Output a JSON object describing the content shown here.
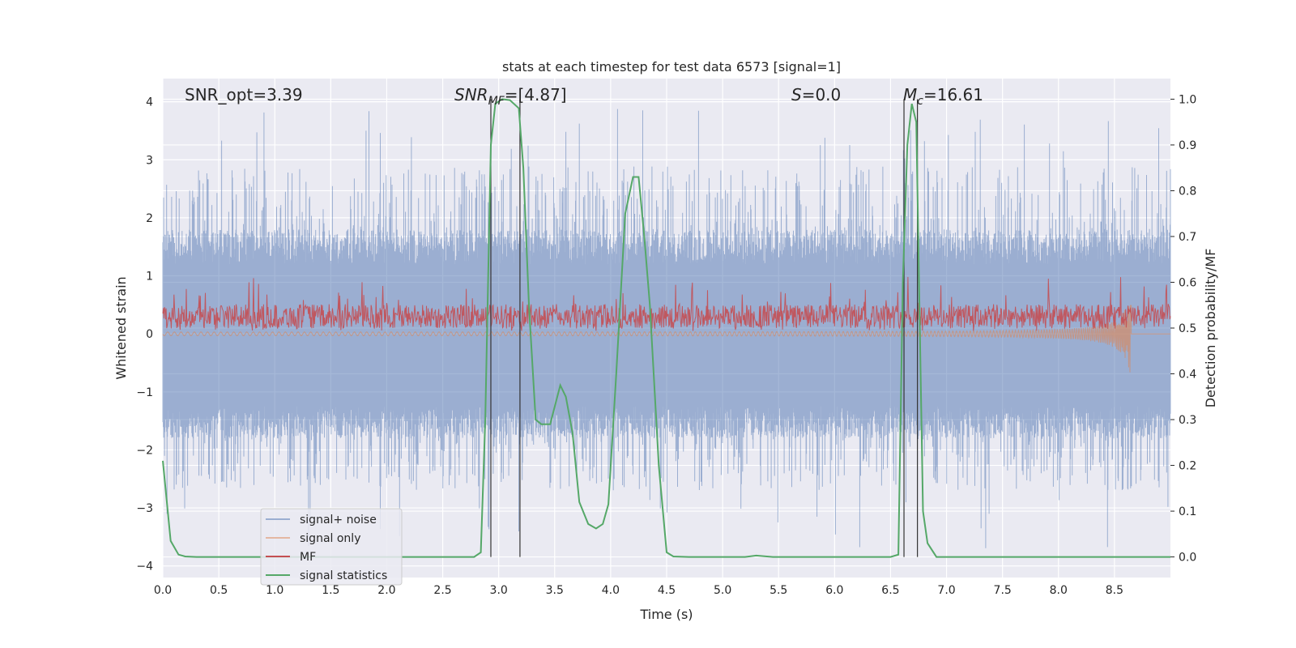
{
  "chart_data": {
    "type": "line",
    "title": "stats at each timestep for test data 6573 [signal=1]",
    "xlabel": "Time (s)",
    "ylabel": "Whitened strain",
    "ylabel_right": "Detection probability/MF",
    "xlim": [
      0.0,
      9.0
    ],
    "ylim": [
      -4.2,
      4.4
    ],
    "ylim_right": [
      -0.045,
      1.045
    ],
    "x_ticks": [
      "0.0",
      "0.5",
      "1.0",
      "1.5",
      "2.0",
      "2.5",
      "3.0",
      "3.5",
      "4.0",
      "4.5",
      "5.0",
      "5.5",
      "6.0",
      "6.5",
      "7.0",
      "7.5",
      "8.0",
      "8.5"
    ],
    "y_ticks": [
      "4",
      "3",
      "2",
      "1",
      "0",
      "−1",
      "−2",
      "−3",
      "−4"
    ],
    "y_ticks_right": [
      "1.0",
      "0.9",
      "0.8",
      "0.7",
      "0.6",
      "0.5",
      "0.4",
      "0.3",
      "0.2",
      "0.1",
      "0.0"
    ],
    "grid": true,
    "legend_position": "lower-left",
    "annotations": {
      "snr_opt": "SNR_opt=3.39",
      "snr_mf_main": "SNR",
      "snr_mf_sub": "MF",
      "snr_mf_rest": "=[4.87]",
      "s_main": "S",
      "s_rest": "=0.0",
      "mc_main": "M",
      "mc_sub": "c",
      "mc_rest": "=16.61"
    },
    "series": [
      {
        "name": "signal+ noise",
        "color": "#4c72b0",
        "axis": "left",
        "note": "noise amplitude ~ ±1.5 with spikes to ±3"
      },
      {
        "name": "signal only",
        "color": "#dd8452",
        "axis": "left"
      },
      {
        "name": "MF",
        "color": "#c44e52",
        "axis": "left"
      },
      {
        "name": "signal statistics",
        "color": "#55a868",
        "axis": "right",
        "x": [
          0.0,
          0.07,
          0.14,
          0.2,
          0.3,
          0.5,
          1.0,
          1.5,
          2.0,
          2.5,
          2.78,
          2.84,
          2.88,
          2.93,
          2.97,
          3.03,
          3.1,
          3.18,
          3.22,
          3.27,
          3.33,
          3.38,
          3.46,
          3.55,
          3.6,
          3.66,
          3.72,
          3.8,
          3.87,
          3.93,
          3.98,
          4.05,
          4.13,
          4.2,
          4.25,
          4.3,
          4.35,
          4.43,
          4.5,
          4.56,
          4.7,
          5.0,
          5.2,
          5.3,
          5.45,
          5.7,
          6.0,
          6.5,
          6.57,
          6.61,
          6.65,
          6.69,
          6.73,
          6.79,
          6.83,
          6.91,
          7.0,
          8.0,
          9.0
        ],
        "y": [
          0.21,
          0.035,
          0.005,
          0.001,
          0.0,
          0.0,
          0.0,
          0.0,
          0.0,
          0.0,
          0.0,
          0.01,
          0.3,
          0.9,
          0.99,
          1.0,
          0.998,
          0.98,
          0.85,
          0.55,
          0.3,
          0.29,
          0.29,
          0.375,
          0.35,
          0.27,
          0.12,
          0.072,
          0.062,
          0.072,
          0.115,
          0.4,
          0.75,
          0.83,
          0.83,
          0.7,
          0.55,
          0.2,
          0.01,
          0.001,
          0.0,
          0.0,
          0.0,
          0.003,
          0.0,
          0.0,
          0.0,
          0.0,
          0.005,
          0.6,
          0.9,
          0.99,
          0.95,
          0.1,
          0.03,
          0.0,
          0.0,
          0.0,
          0.0
        ]
      }
    ],
    "vertical_lines_x": [
      2.93,
      3.19,
      6.62,
      6.74
    ]
  }
}
